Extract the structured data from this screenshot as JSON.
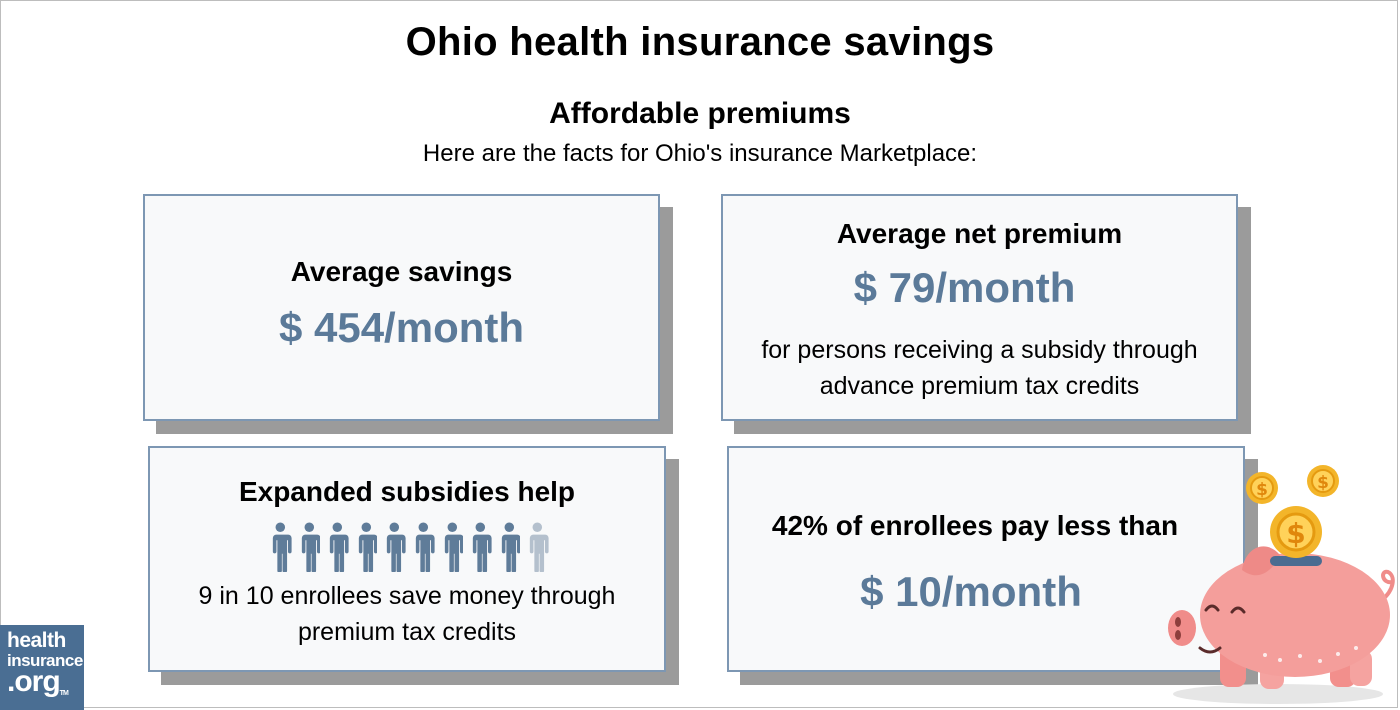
{
  "header": {
    "title": "Ohio health insurance savings",
    "subtitle": "Affordable premiums",
    "intro": "Here are the facts for Ohio's insurance Marketplace:"
  },
  "cards": {
    "savings": {
      "heading": "Average savings",
      "value": "$ 454/month"
    },
    "net_premium": {
      "heading": "Average net premium",
      "value": "$ 79/month",
      "text_line1": "for persons receiving a subsidy through",
      "text_line2": "advance premium tax credits"
    },
    "subsidies": {
      "heading": "Expanded subsidies help",
      "people_total": 10,
      "people_highlighted": 9,
      "text_line1": "9 in 10 enrollees save money through",
      "text_line2": "premium tax credits"
    },
    "low_cost": {
      "heading": "42% of enrollees pay less than",
      "value": "$ 10/month"
    }
  },
  "logo": {
    "line1": "health",
    "line2": "insurance",
    "line3": ".org",
    "tm": "TM"
  },
  "colors": {
    "accent": "#5b7a99",
    "card_border": "#7d97b3",
    "card_bg": "#f8f9fa",
    "shadow": "#9b9b9b",
    "person_active": "#5f7c99",
    "person_inactive": "#b4c0cd",
    "logo_bg": "#4a6e93"
  },
  "icons": {
    "people": "person-icon",
    "piggy": "piggy-bank-icon",
    "coins": "dollar-coin-icon"
  }
}
